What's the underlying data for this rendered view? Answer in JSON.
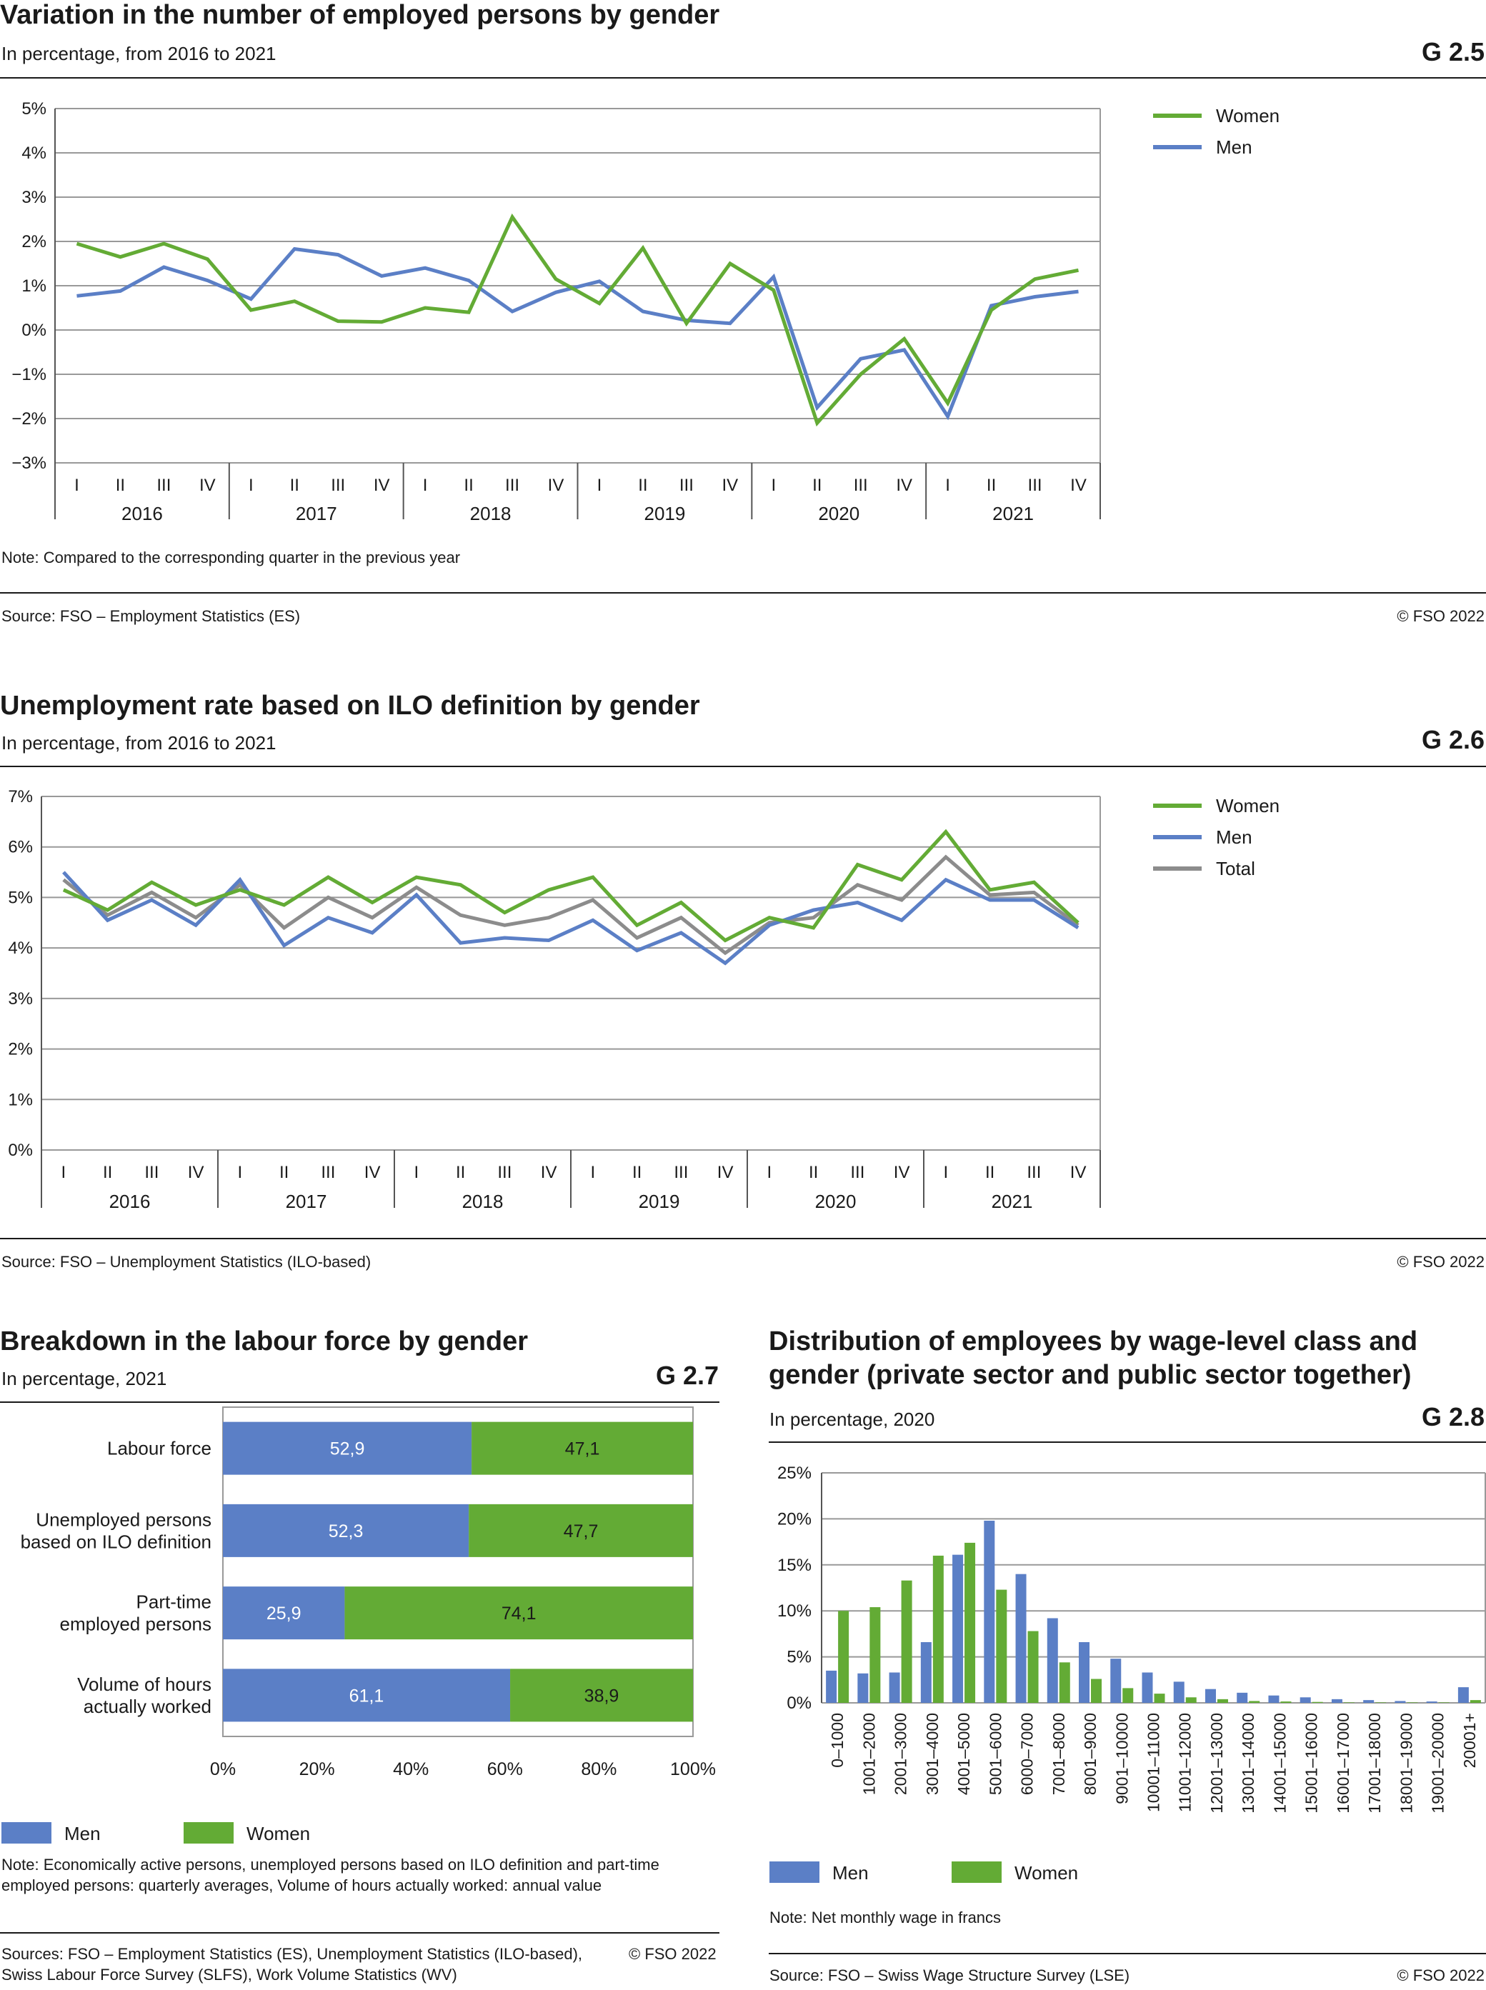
{
  "colors": {
    "men": "#5b7fc6",
    "women": "#63ab35",
    "total": "#8c8c8c",
    "grid": "#999999",
    "axis": "#555555"
  },
  "g25": {
    "title": "Variation in the number of employed persons by gender",
    "subtitle": "In percentage, from 2016 to 2021",
    "code": "G 2.5",
    "note": "Note: Compared to the corresponding quarter in the previous year",
    "source": "Source: FSO – Employment Statistics (ES)",
    "copyright": "© FSO 2022"
  },
  "g26": {
    "title": "Unemployment rate based on ILO definition by gender",
    "subtitle": "In percentage, from 2016 to 2021",
    "code": "G 2.6",
    "source": "Source: FSO – Unemployment Statistics (ILO-based)",
    "copyright": "© FSO 2022"
  },
  "g27": {
    "title": "Breakdown in the labour force by gender",
    "subtitle": "In percentage, 2021",
    "code": "G 2.7",
    "note": "Note: Economically active persons, unemployed persons based on ILO definition and part-time employed persons: quarterly averages, Volume of hours actually worked: annual value",
    "source": "Sources: FSO – Employment Statistics (ES), Unemployment Statistics (ILO-based), Swiss Labour Force Survey (SLFS), Work Volume Statistics (WV)",
    "copyright": "© FSO 2022"
  },
  "g28": {
    "title_line1": "Distribution of employees by wage-level class and",
    "title_line2": "gender (private sector and public sector together)",
    "subtitle": "In percentage, 2020",
    "code": "G 2.8",
    "note": "Note: Net monthly wage in francs",
    "source": "Source: FSO – Swiss Wage Structure Survey (LSE)",
    "copyright": "© FSO 2022"
  },
  "chart_data": [
    {
      "id": "G2.5",
      "type": "line",
      "quarters": [
        "I",
        "II",
        "III",
        "IV"
      ],
      "years": [
        "2016",
        "2017",
        "2018",
        "2019",
        "2020",
        "2021"
      ],
      "y_ticks": [
        "5%",
        "4%",
        "3%",
        "2%",
        "1%",
        "0%",
        "−1%",
        "−2%",
        "−3%"
      ],
      "ylim": [
        -3,
        5
      ],
      "grid": true,
      "legend": "right",
      "series": [
        {
          "name": "Women",
          "color_key": "women",
          "values": [
            1.95,
            1.65,
            1.95,
            1.6,
            0.45,
            0.65,
            0.2,
            0.18,
            0.5,
            0.4,
            2.55,
            1.15,
            0.6,
            1.85,
            0.15,
            1.5,
            0.9,
            -2.1,
            -1.0,
            -0.2,
            -1.65,
            0.45,
            1.15,
            1.35
          ]
        },
        {
          "name": "Men",
          "color_key": "men",
          "values": [
            0.77,
            0.88,
            1.42,
            1.12,
            0.7,
            1.83,
            1.7,
            1.22,
            1.4,
            1.12,
            0.42,
            0.85,
            1.1,
            0.42,
            0.22,
            0.15,
            1.2,
            -1.75,
            -0.65,
            -0.45,
            -1.95,
            0.55,
            0.75,
            0.87
          ]
        }
      ]
    },
    {
      "id": "G2.6",
      "type": "line",
      "quarters": [
        "I",
        "II",
        "III",
        "IV"
      ],
      "years": [
        "2016",
        "2017",
        "2018",
        "2019",
        "2020",
        "2021"
      ],
      "y_ticks": [
        "7%",
        "6%",
        "5%",
        "4%",
        "3%",
        "2%",
        "1%",
        "0%"
      ],
      "ylim": [
        0,
        7
      ],
      "grid": true,
      "legend": "right",
      "series": [
        {
          "name": "Women",
          "color_key": "women",
          "values": [
            5.15,
            4.75,
            5.3,
            4.85,
            5.15,
            4.85,
            5.4,
            4.9,
            5.4,
            5.25,
            4.7,
            5.15,
            5.4,
            4.45,
            4.9,
            4.15,
            4.6,
            4.4,
            5.65,
            5.35,
            6.3,
            5.15,
            5.3,
            4.5
          ]
        },
        {
          "name": "Men",
          "color_key": "men",
          "values": [
            5.5,
            4.55,
            4.95,
            4.45,
            5.35,
            4.05,
            4.6,
            4.3,
            5.05,
            4.1,
            4.2,
            4.15,
            4.55,
            3.95,
            4.3,
            3.7,
            4.45,
            4.75,
            4.9,
            4.55,
            5.35,
            4.95,
            4.95,
            4.4
          ]
        },
        {
          "name": "Total",
          "color_key": "total",
          "values": [
            5.35,
            4.65,
            5.1,
            4.6,
            5.25,
            4.4,
            5.0,
            4.6,
            5.2,
            4.65,
            4.45,
            4.6,
            4.95,
            4.2,
            4.6,
            3.9,
            4.5,
            4.6,
            5.25,
            4.95,
            5.8,
            5.05,
            5.1,
            4.45
          ]
        }
      ]
    },
    {
      "id": "G2.7",
      "type": "bar",
      "orientation": "horizontal-stacked-100",
      "categories": [
        [
          "Labour force"
        ],
        [
          "Unemployed persons",
          "based on ILO definition"
        ],
        [
          "Part-time",
          "employed persons"
        ],
        [
          "Volume of hours",
          "actually worked"
        ]
      ],
      "series": [
        {
          "name": "Men",
          "color_key": "men",
          "values": [
            52.9,
            52.3,
            25.9,
            61.1
          ],
          "labels": [
            "52,9",
            "52,3",
            "25,9",
            "61,1"
          ]
        },
        {
          "name": "Women",
          "color_key": "women",
          "values": [
            47.1,
            47.7,
            74.1,
            38.9
          ],
          "labels": [
            "47,1",
            "47,7",
            "74,1",
            "38,9"
          ]
        }
      ],
      "x_ticks": [
        "0%",
        "20%",
        "40%",
        "60%",
        "80%",
        "100%"
      ],
      "xlim": [
        0,
        100
      ],
      "legend": "bottom"
    },
    {
      "id": "G2.8",
      "type": "bar",
      "categories": [
        "0–1000",
        "1001–2000",
        "2001–3000",
        "3001–4000",
        "4001–5000",
        "5001–6000",
        "6000–7000",
        "7001–8000",
        "8001–9000",
        "9001–10000",
        "10001–11000",
        "11001–12000",
        "12001–13000",
        "13001–14000",
        "14001–15000",
        "15001–16000",
        "16001–17000",
        "17001–18000",
        "18001–19000",
        "19001–20000",
        "20001+"
      ],
      "series": [
        {
          "name": "Men",
          "color_key": "men",
          "values": [
            3.5,
            3.2,
            3.3,
            6.6,
            16.1,
            19.8,
            14.0,
            9.2,
            6.6,
            4.8,
            3.3,
            2.3,
            1.5,
            1.1,
            0.8,
            0.6,
            0.4,
            0.3,
            0.2,
            0.15,
            1.7
          ]
        },
        {
          "name": "Women",
          "color_key": "women",
          "values": [
            10.0,
            10.4,
            13.3,
            16.0,
            17.4,
            12.3,
            7.8,
            4.4,
            2.6,
            1.6,
            1.0,
            0.6,
            0.4,
            0.2,
            0.15,
            0.1,
            0.05,
            0.05,
            0.05,
            0.05,
            0.3
          ]
        }
      ],
      "y_ticks": [
        "25%",
        "20%",
        "15%",
        "10%",
        "5%",
        "0%"
      ],
      "ylim": [
        0,
        25
      ],
      "grid": true,
      "legend": "bottom"
    }
  ]
}
